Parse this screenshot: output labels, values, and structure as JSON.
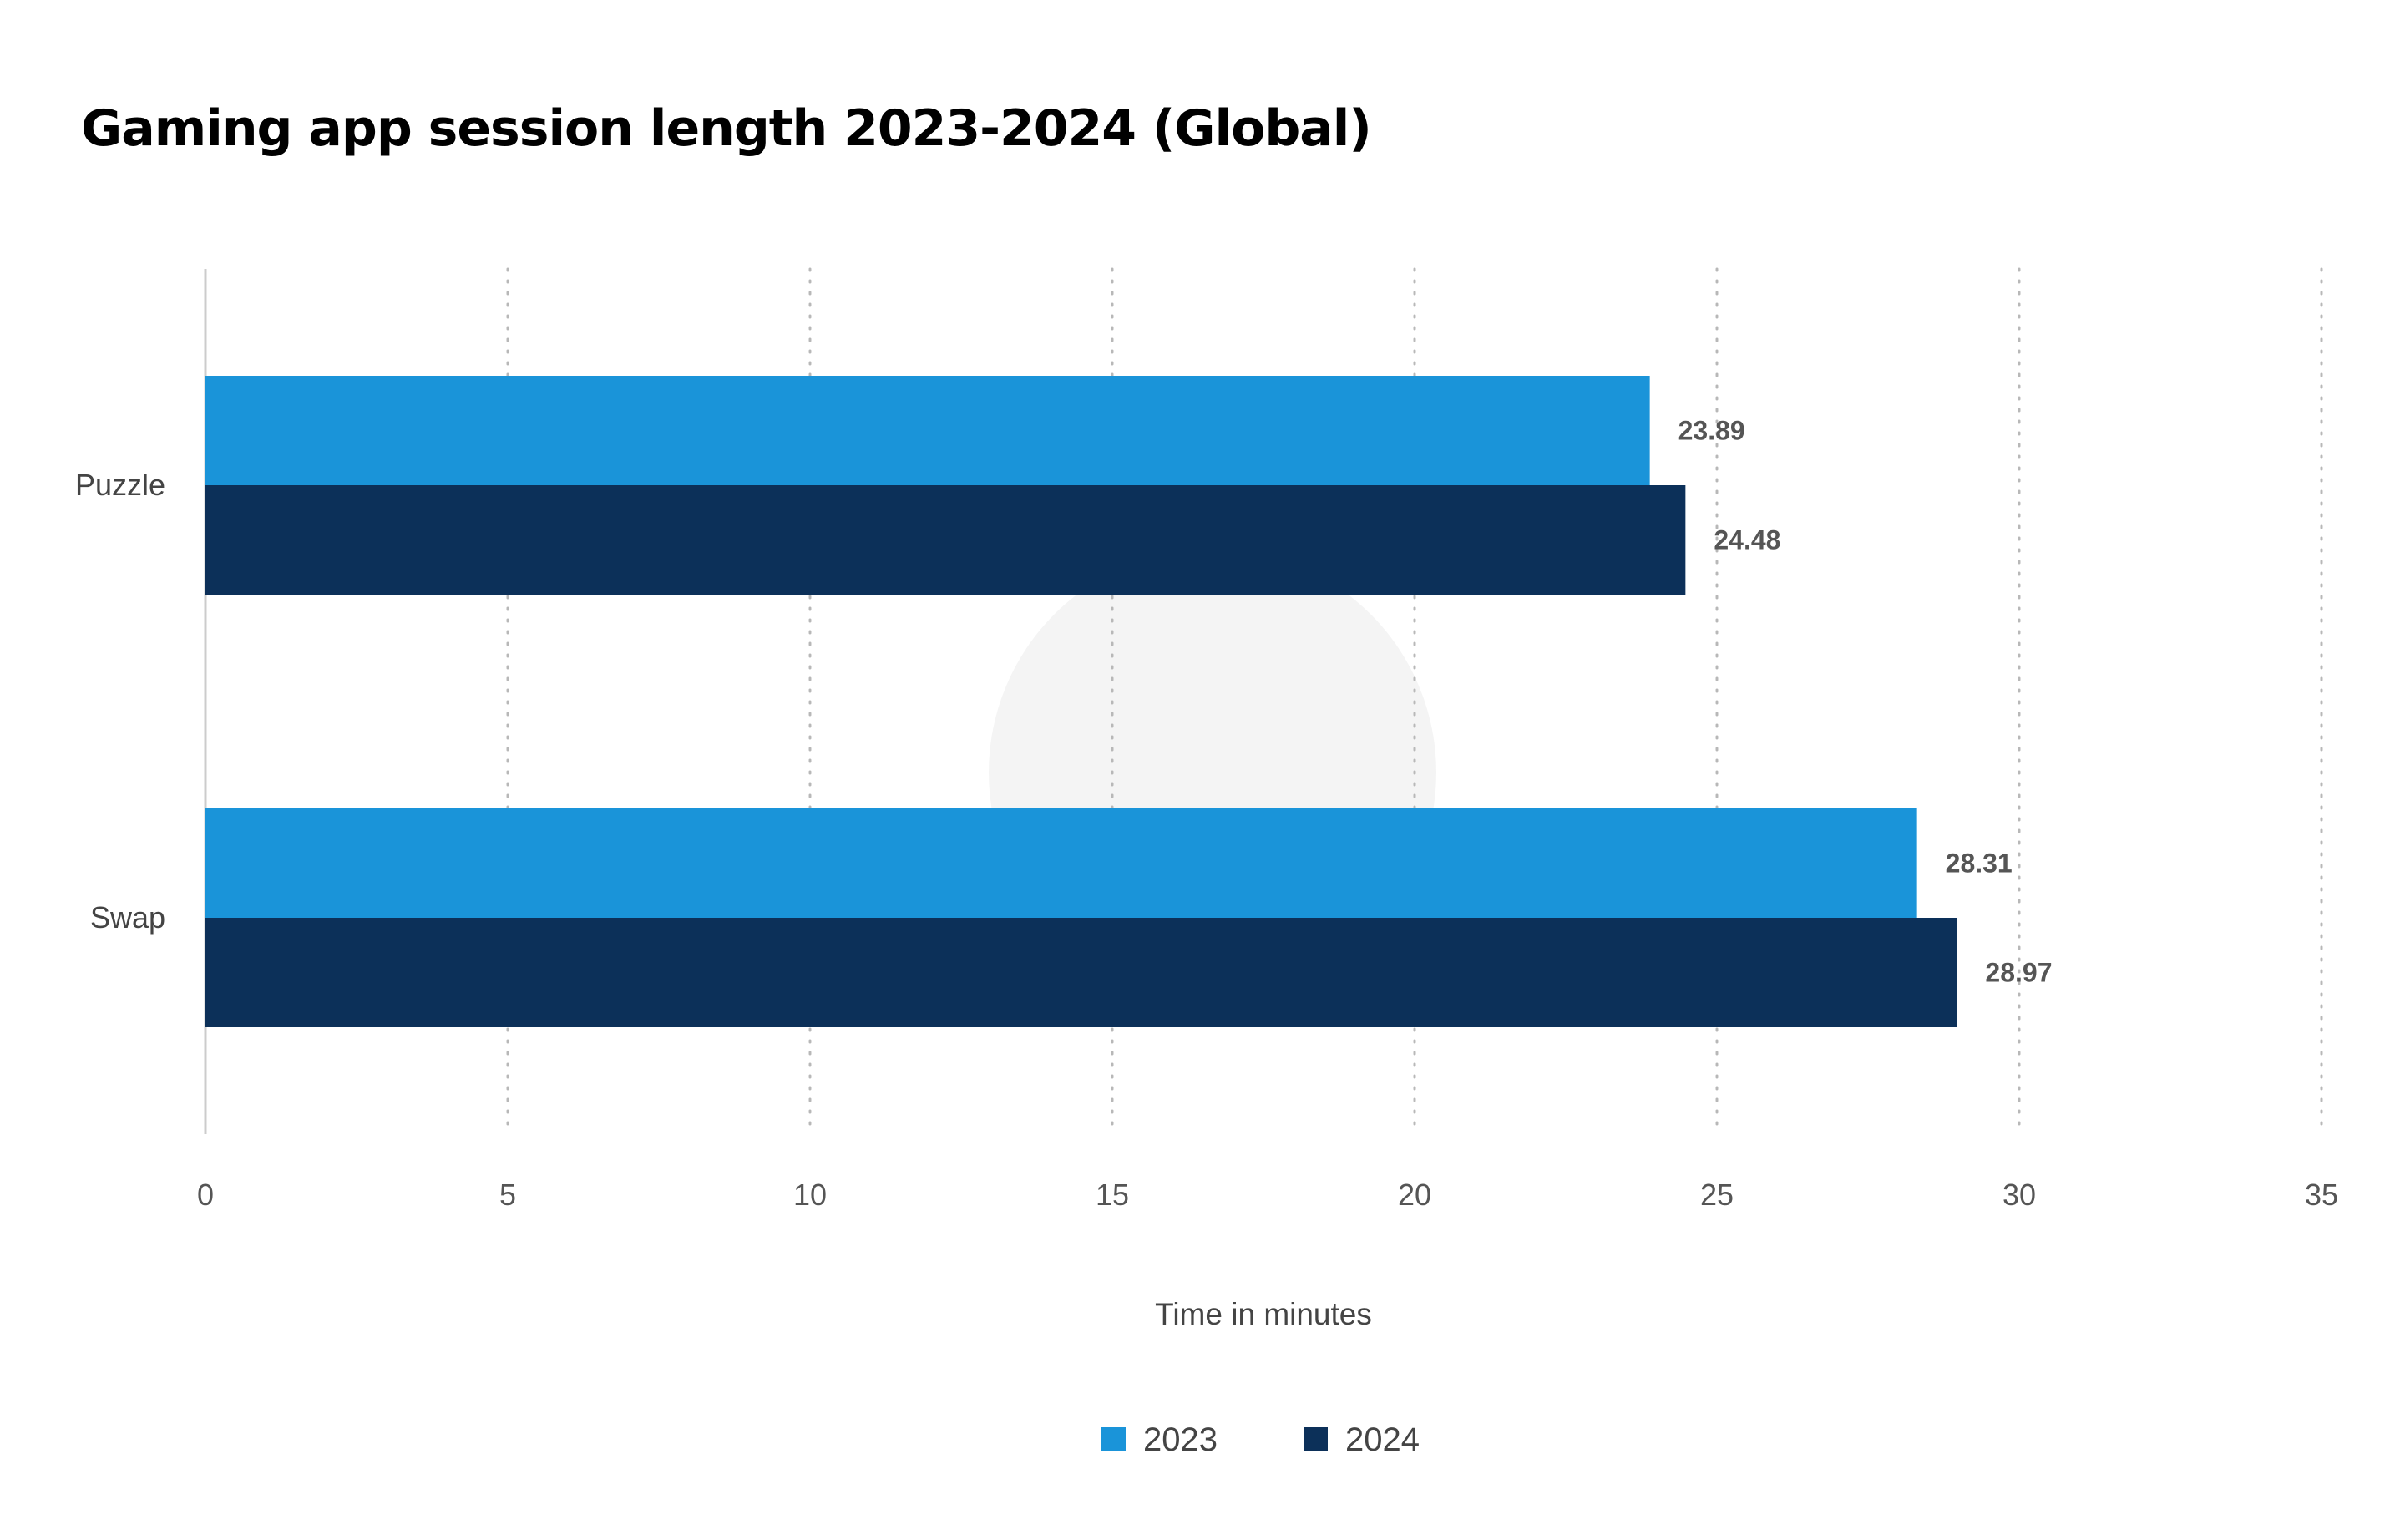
{
  "chart_data": {
    "type": "bar",
    "orientation": "horizontal",
    "title": "Gaming app session length 2023-2024 (Global)",
    "xlabel": "Time in minutes",
    "ylabel": "",
    "categories": [
      "Puzzle",
      "Swap"
    ],
    "series": [
      {
        "name": "2023",
        "color": "#1a94d9",
        "values": [
          23.89,
          28.31
        ]
      },
      {
        "name": "2024",
        "color": "#0c3059",
        "values": [
          24.48,
          28.97
        ]
      }
    ],
    "xlim": [
      0,
      35
    ],
    "xticks": [
      "0",
      "5",
      "10",
      "15",
      "20",
      "25",
      "30",
      "35"
    ],
    "data_labels": [
      "23.89",
      "28.31",
      "24.48",
      "28.97"
    ],
    "grid": true,
    "grid_style": "dotted",
    "legend_position": "bottom-center"
  }
}
